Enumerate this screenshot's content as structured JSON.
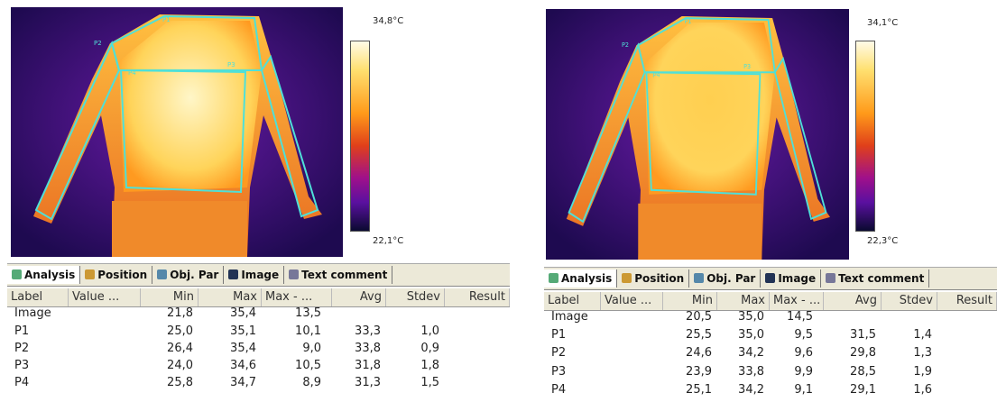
{
  "panels": [
    {
      "scale_max": "34,8°C",
      "scale_min": "22,1°C",
      "roi_labels": [
        "P1",
        "P2",
        "P3",
        "P4"
      ],
      "tabs": [
        "Analysis",
        "Position",
        "Obj. Par",
        "Image",
        "Text comment"
      ],
      "table": {
        "headers": [
          "Label",
          "Value ...",
          "Min",
          "Max",
          "Max - ...",
          "Avg",
          "Stdev",
          "Result"
        ],
        "rows": [
          {
            "label": "Image",
            "min": "21,8",
            "max": "35,4",
            "range": "13,5"
          },
          {
            "label": "P1",
            "min": "25,0",
            "max": "35,1",
            "range": "10,1",
            "avg": "33,3",
            "stdev": "1,0"
          },
          {
            "label": "P2",
            "min": "26,4",
            "max": "35,4",
            "range": "9,0",
            "avg": "33,8",
            "stdev": "0,9"
          },
          {
            "label": "P3",
            "min": "24,0",
            "max": "34,6",
            "range": "10,5",
            "avg": "31,8",
            "stdev": "1,8"
          },
          {
            "label": "P4",
            "min": "25,8",
            "max": "34,7",
            "range": "8,9",
            "avg": "31,3",
            "stdev": "1,5"
          }
        ]
      }
    },
    {
      "scale_max": "34,1°C",
      "scale_min": "22,3°C",
      "roi_labels": [
        "P1",
        "P2",
        "P3",
        "P4"
      ],
      "tabs": [
        "Analysis",
        "Position",
        "Obj. Par",
        "Image",
        "Text comment"
      ],
      "table": {
        "headers": [
          "Label",
          "Value ...",
          "Min",
          "Max",
          "Max - ...",
          "Avg",
          "Stdev",
          "Result"
        ],
        "rows": [
          {
            "label": "Image",
            "min": "20,5",
            "max": "35,0",
            "range": "14,5"
          },
          {
            "label": "P1",
            "min": "25,5",
            "max": "35,0",
            "range": "9,5",
            "avg": "31,5",
            "stdev": "1,4"
          },
          {
            "label": "P2",
            "min": "24,6",
            "max": "34,2",
            "range": "9,6",
            "avg": "29,8",
            "stdev": "1,3"
          },
          {
            "label": "P3",
            "min": "23,9",
            "max": "33,8",
            "range": "9,9",
            "avg": "28,5",
            "stdev": "1,9"
          },
          {
            "label": "P4",
            "min": "25,1",
            "max": "34,2",
            "range": "9,1",
            "avg": "29,1",
            "stdev": "1,6"
          }
        ]
      }
    }
  ]
}
